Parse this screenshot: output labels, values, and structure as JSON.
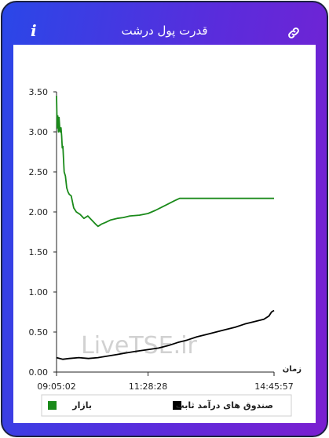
{
  "header": {
    "title": "قدرت پول درشت",
    "info_icon": "info-icon",
    "link_icon": "link-icon"
  },
  "colors": {
    "market": "#1a8a1a",
    "fixed_income": "#000000",
    "header_gradient_start": "#2a47e8",
    "header_gradient_end": "#7a1fd0"
  },
  "watermark": "LiveTSE.ir",
  "chart_data": {
    "type": "line",
    "xlabel": "زمان",
    "ylabel": "",
    "ylim": [
      0,
      3.5
    ],
    "yticks": [
      "0.00",
      "0.50",
      "1.00",
      "1.50",
      "2.00",
      "2.50",
      "3.00",
      "3.50"
    ],
    "xticks": [
      "09:05:02",
      "11:28:28",
      "14:45:57"
    ],
    "xlim": [
      "09:05:02",
      "14:45:57"
    ],
    "grid": false,
    "legend_position": "bottom",
    "series": [
      {
        "name": "بازار",
        "color": "#1a8a1a",
        "points": [
          [
            "09:05:02",
            3.45
          ],
          [
            "09:06:00",
            3.05
          ],
          [
            "09:07:00",
            3.2
          ],
          [
            "09:08:00",
            3.0
          ],
          [
            "09:09:00",
            3.18
          ],
          [
            "09:10:30",
            3.0
          ],
          [
            "09:12:00",
            3.05
          ],
          [
            "09:13:00",
            2.95
          ],
          [
            "09:14:00",
            2.8
          ],
          [
            "09:15:00",
            2.82
          ],
          [
            "09:17:00",
            2.5
          ],
          [
            "09:19:00",
            2.45
          ],
          [
            "09:21:00",
            2.3
          ],
          [
            "09:23:00",
            2.25
          ],
          [
            "09:25:00",
            2.22
          ],
          [
            "09:28:00",
            2.2
          ],
          [
            "09:32:00",
            2.05
          ],
          [
            "09:36:00",
            2.0
          ],
          [
            "09:42:00",
            1.97
          ],
          [
            "09:48:00",
            1.92
          ],
          [
            "09:54:00",
            1.95
          ],
          [
            "10:00:00",
            1.9
          ],
          [
            "10:06:00",
            1.85
          ],
          [
            "10:10:00",
            1.82
          ],
          [
            "10:16:00",
            1.85
          ],
          [
            "10:22:00",
            1.87
          ],
          [
            "10:30:00",
            1.9
          ],
          [
            "10:40:00",
            1.92
          ],
          [
            "10:50:00",
            1.93
          ],
          [
            "11:00:00",
            1.95
          ],
          [
            "11:15:00",
            1.96
          ],
          [
            "11:28:28",
            1.98
          ],
          [
            "11:40:00",
            2.02
          ],
          [
            "11:50:00",
            2.06
          ],
          [
            "12:00:00",
            2.1
          ],
          [
            "12:10:00",
            2.14
          ],
          [
            "12:18:00",
            2.17
          ],
          [
            "12:30:00",
            2.17
          ],
          [
            "13:00:00",
            2.17
          ],
          [
            "13:30:00",
            2.17
          ],
          [
            "14:00:00",
            2.17
          ],
          [
            "14:30:00",
            2.17
          ],
          [
            "14:45:57",
            2.17
          ]
        ]
      },
      {
        "name": "صندوق های درآمد ثابت",
        "color": "#000000",
        "points": [
          [
            "09:05:02",
            0.18
          ],
          [
            "09:15:00",
            0.16
          ],
          [
            "09:25:00",
            0.17
          ],
          [
            "09:40:00",
            0.18
          ],
          [
            "09:55:00",
            0.17
          ],
          [
            "10:10:00",
            0.18
          ],
          [
            "10:25:00",
            0.2
          ],
          [
            "10:40:00",
            0.22
          ],
          [
            "10:55:00",
            0.24
          ],
          [
            "11:10:00",
            0.26
          ],
          [
            "11:28:28",
            0.28
          ],
          [
            "11:45:00",
            0.3
          ],
          [
            "12:00:00",
            0.33
          ],
          [
            "12:15:00",
            0.37
          ],
          [
            "12:30:00",
            0.4
          ],
          [
            "12:45:00",
            0.44
          ],
          [
            "13:00:00",
            0.47
          ],
          [
            "13:15:00",
            0.5
          ],
          [
            "13:30:00",
            0.53
          ],
          [
            "13:45:00",
            0.56
          ],
          [
            "14:00:00",
            0.6
          ],
          [
            "14:15:00",
            0.63
          ],
          [
            "14:30:00",
            0.66
          ],
          [
            "14:38:00",
            0.7
          ],
          [
            "14:42:00",
            0.75
          ],
          [
            "14:45:57",
            0.77
          ]
        ]
      }
    ]
  }
}
